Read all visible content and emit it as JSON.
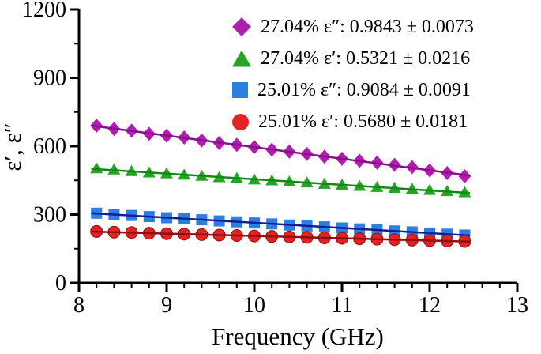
{
  "chart_data": {
    "type": "scatter",
    "title": "",
    "xlabel": "Frequency (GHz)",
    "ylabel": "ε′, ε″",
    "xlim": [
      8,
      13
    ],
    "ylim": [
      0,
      1200
    ],
    "xticks": [
      8,
      9,
      10,
      11,
      12,
      13
    ],
    "yticks": [
      0,
      300,
      600,
      900,
      1200
    ],
    "x_minor_step": 0.2,
    "y_minor_step": 150,
    "grid": false,
    "legend_position": "inside-top-right",
    "axis_color": "#000000",
    "x": [
      8.2,
      8.4,
      8.6,
      8.8,
      9.0,
      9.2,
      9.4,
      9.6,
      9.8,
      10.0,
      10.2,
      10.4,
      10.6,
      10.8,
      11.0,
      11.2,
      11.4,
      11.6,
      11.8,
      12.0,
      12.2,
      12.4
    ],
    "series": [
      {
        "name": "27.04% ε″: 0.9843 ± 0.0073",
        "marker": "diamond",
        "color": "#B01EB0",
        "trend_color": "#8A0F8A",
        "values": [
          690,
          676,
          668,
          654,
          646,
          638,
          625,
          614,
          606,
          596,
          585,
          576,
          566,
          554,
          545,
          536,
          528,
          518,
          508,
          494,
          482,
          468
        ]
      },
      {
        "name": "27.04% ε′: 0.5321 ± 0.0216",
        "marker": "triangle",
        "color": "#27A427",
        "trend_color": "#128A12",
        "values": [
          502,
          497,
          490,
          484,
          480,
          474,
          469,
          463,
          459,
          453,
          449,
          444,
          440,
          434,
          430,
          425,
          420,
          416,
          412,
          407,
          402,
          397
        ]
      },
      {
        "name": "25.01% ε″: 0.9084 ± 0.0091",
        "marker": "square",
        "color": "#2B7FE0",
        "trend_color": "#141E96",
        "values": [
          306,
          301,
          296,
          291,
          286,
          282,
          277,
          272,
          268,
          263,
          259,
          254,
          250,
          246,
          241,
          237,
          233,
          228,
          224,
          219,
          214,
          210
        ]
      },
      {
        "name": "25.01% ε′: 0.5680 ± 0.0181",
        "marker": "circle",
        "color": "#E32222",
        "trend_color": "#8F1010",
        "values": [
          226,
          223,
          221,
          218,
          216,
          214,
          212,
          210,
          208,
          206,
          204,
          202,
          200,
          198,
          196,
          194,
          192,
          190,
          188,
          186,
          184,
          182
        ]
      }
    ]
  }
}
